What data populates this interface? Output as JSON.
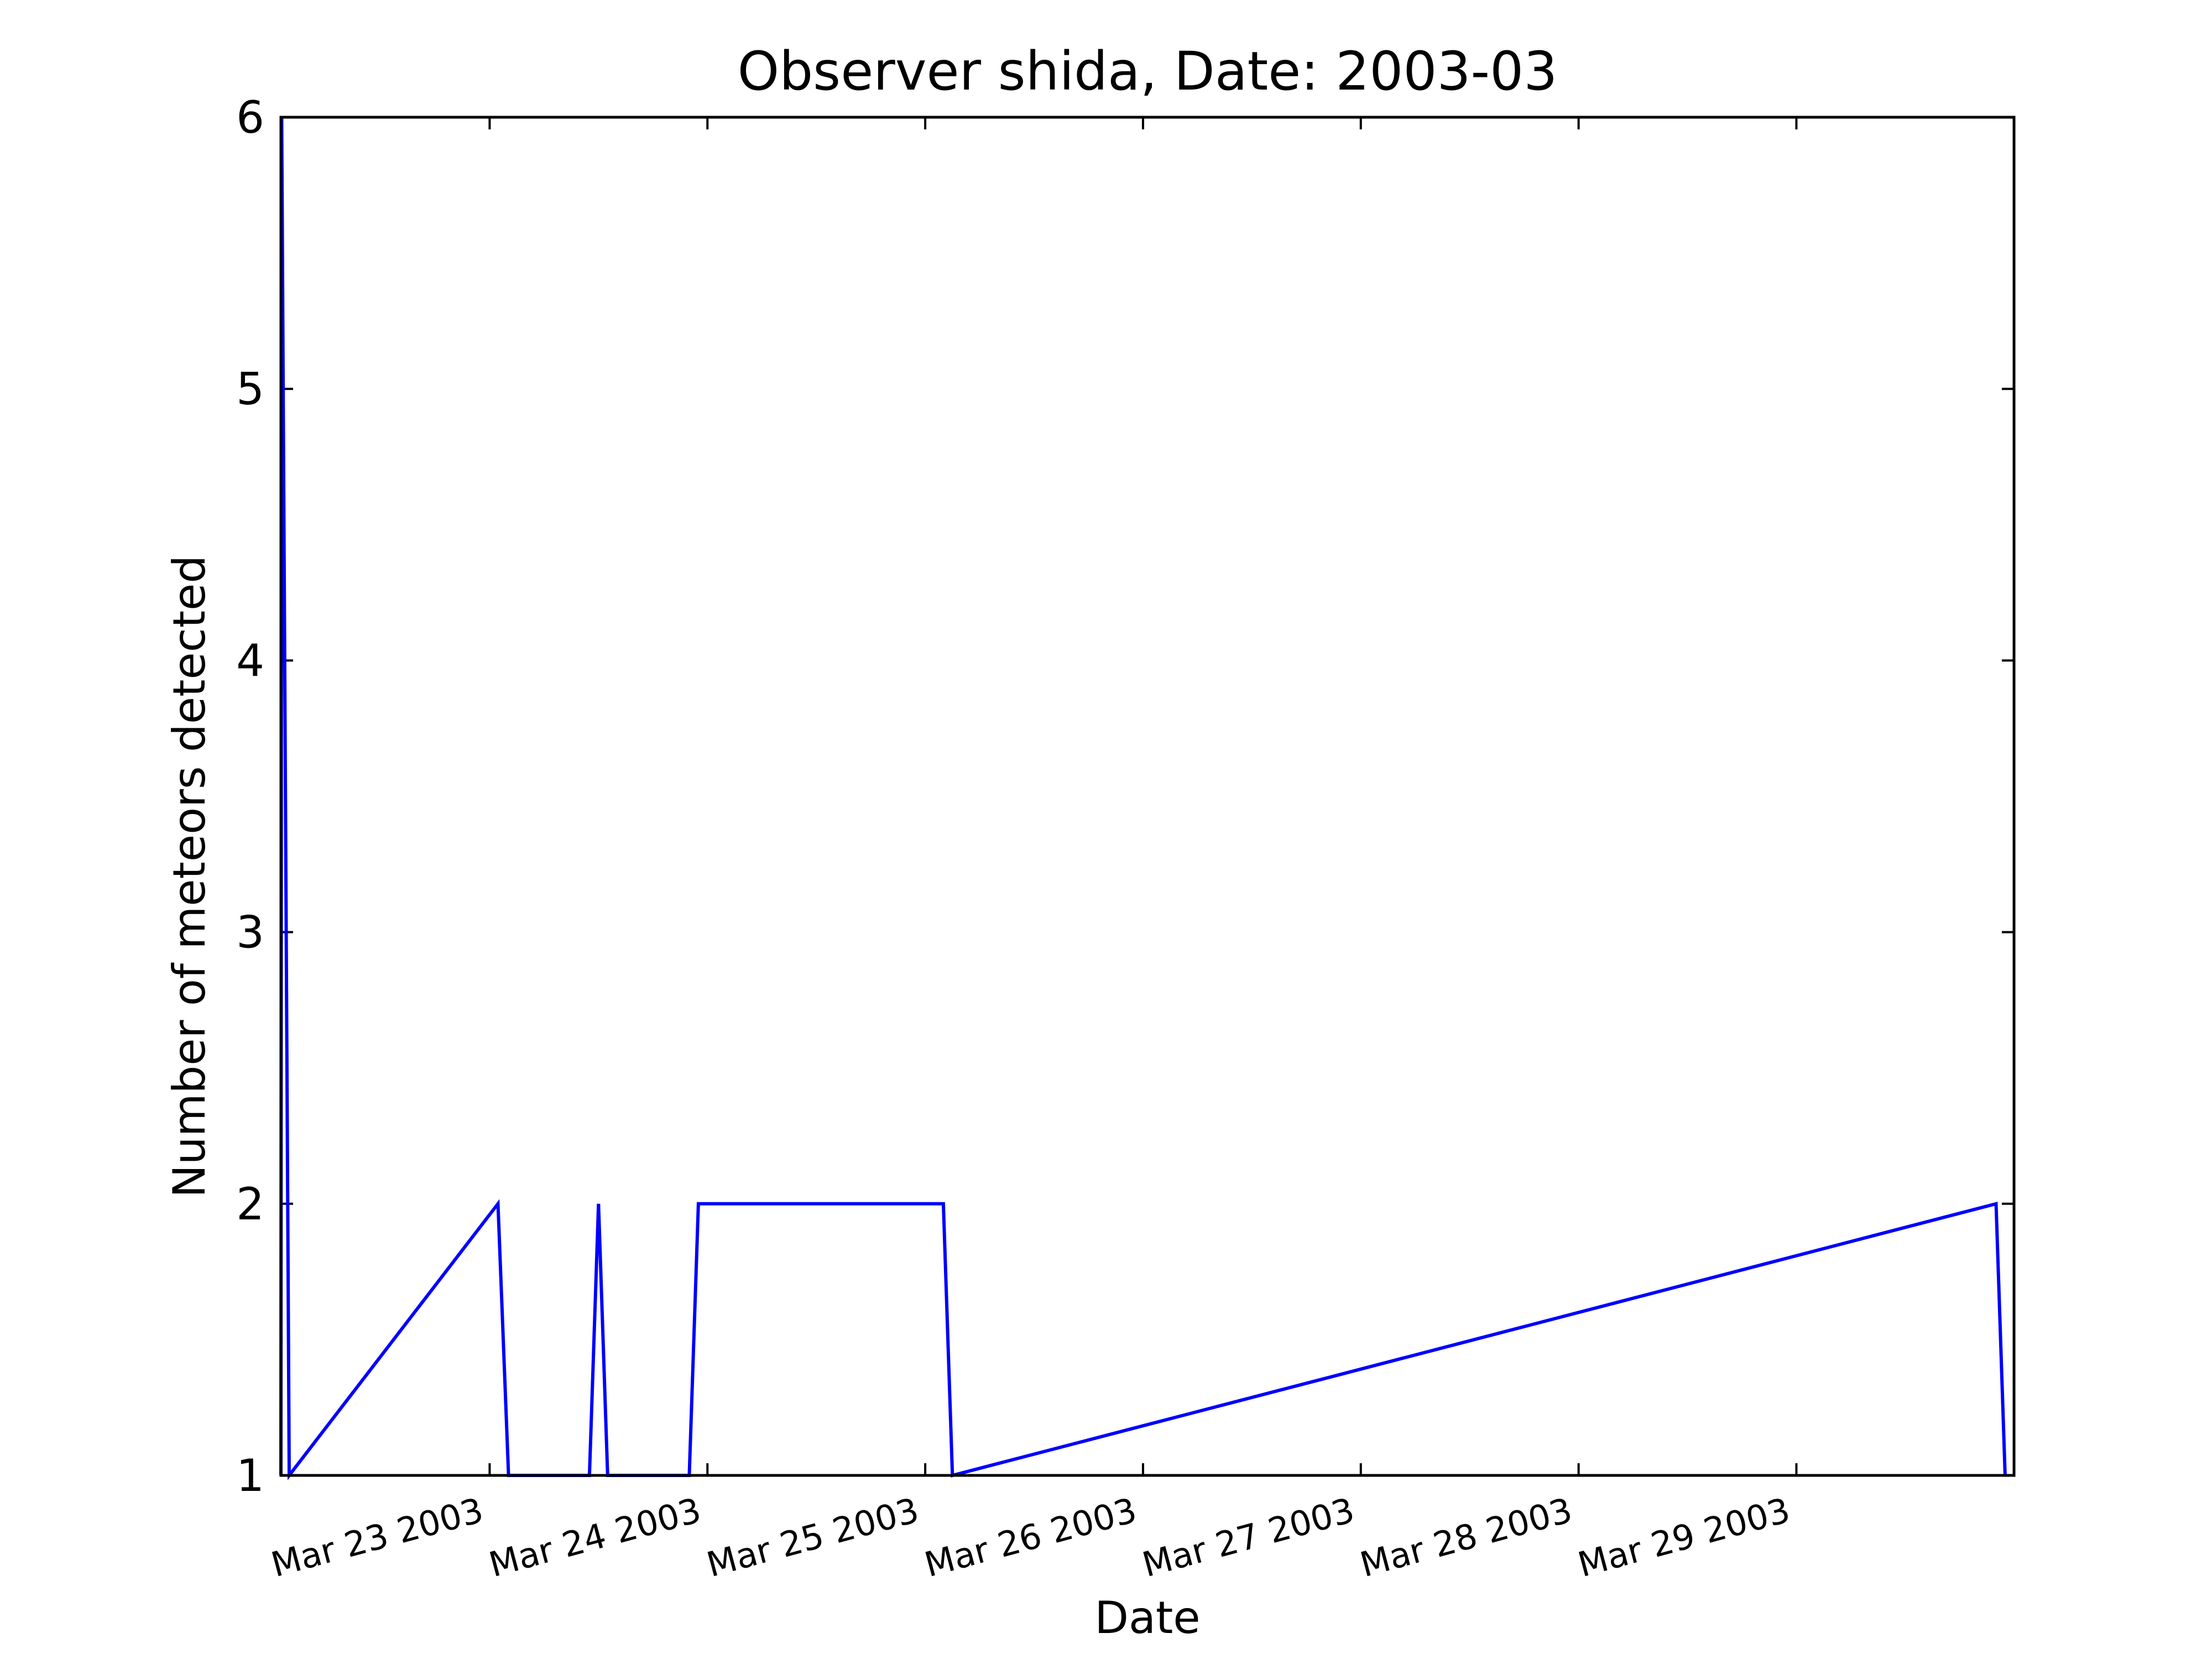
{
  "chart_data": {
    "type": "line",
    "title": "Observer shida, Date: 2003-03",
    "xlabel": "Date",
    "ylabel": "Number of meteors detected",
    "grid": false,
    "legend": "none",
    "line_color": "#0000ff",
    "xlim": [
      "2003-03-22 01:00",
      "2003-03-29 23:59"
    ],
    "ylim": [
      1,
      6
    ],
    "yticks": [
      1,
      2,
      3,
      4,
      5,
      6
    ],
    "xticks": [
      {
        "date": "2003-03-23",
        "label": "Mar 23 2003"
      },
      {
        "date": "2003-03-24",
        "label": "Mar 24 2003"
      },
      {
        "date": "2003-03-25",
        "label": "Mar 25 2003"
      },
      {
        "date": "2003-03-26",
        "label": "Mar 26 2003"
      },
      {
        "date": "2003-03-27",
        "label": "Mar 27 2003"
      },
      {
        "date": "2003-03-28",
        "label": "Mar 28 2003"
      },
      {
        "date": "2003-03-29",
        "label": "Mar 29 2003"
      }
    ],
    "series": [
      {
        "x": [
          "2003-03-22 01:00",
          "2003-03-22 01:05",
          "2003-03-22 01:55",
          "2003-03-23 00:55",
          "2003-03-23 02:05",
          "2003-03-23 11:00",
          "2003-03-23 12:00",
          "2003-03-23 13:00",
          "2003-03-23 22:00",
          "2003-03-23 23:00",
          "2003-03-25 02:00",
          "2003-03-25 03:00",
          "2003-03-29 22:00",
          "2003-03-29 23:00"
        ],
        "y": [
          1,
          6,
          1,
          2,
          1,
          1,
          2,
          1,
          1,
          2,
          2,
          1,
          2,
          1
        ]
      }
    ]
  }
}
